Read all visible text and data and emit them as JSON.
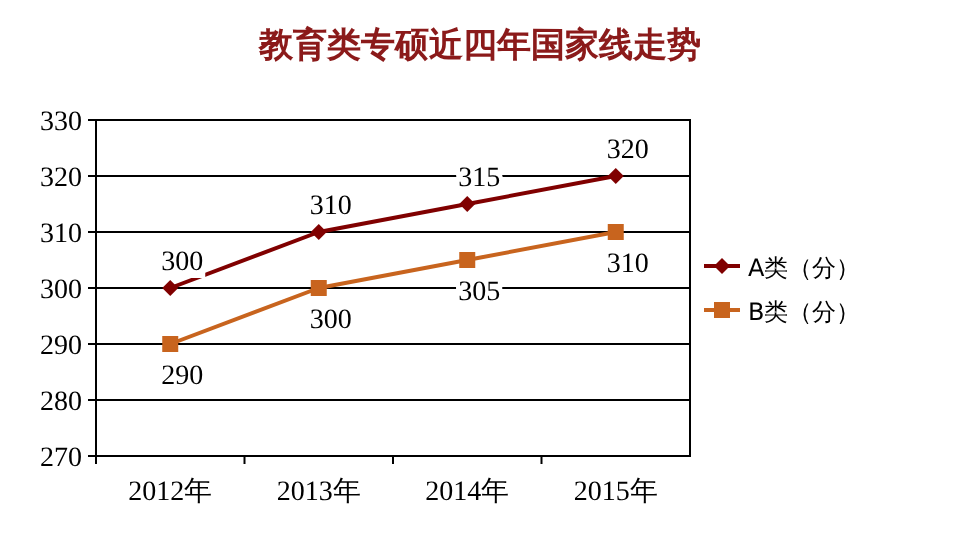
{
  "chart_data": {
    "type": "line",
    "title": "教育类专硕近四年国家线走势",
    "categories": [
      "2012年",
      "2013年",
      "2014年",
      "2015年"
    ],
    "series": [
      {
        "name": "A类（分）",
        "color": "#800000",
        "marker": "diamond",
        "values": [
          300,
          310,
          315,
          320
        ]
      },
      {
        "name": "B类（分）",
        "color": "#c8641e",
        "marker": "square",
        "values": [
          290,
          300,
          305,
          310
        ]
      }
    ],
    "ylim": [
      270,
      330
    ],
    "yticks": [
      270,
      280,
      290,
      300,
      310,
      320,
      330
    ],
    "grid": "y",
    "legend": "right",
    "data_labels": true
  }
}
